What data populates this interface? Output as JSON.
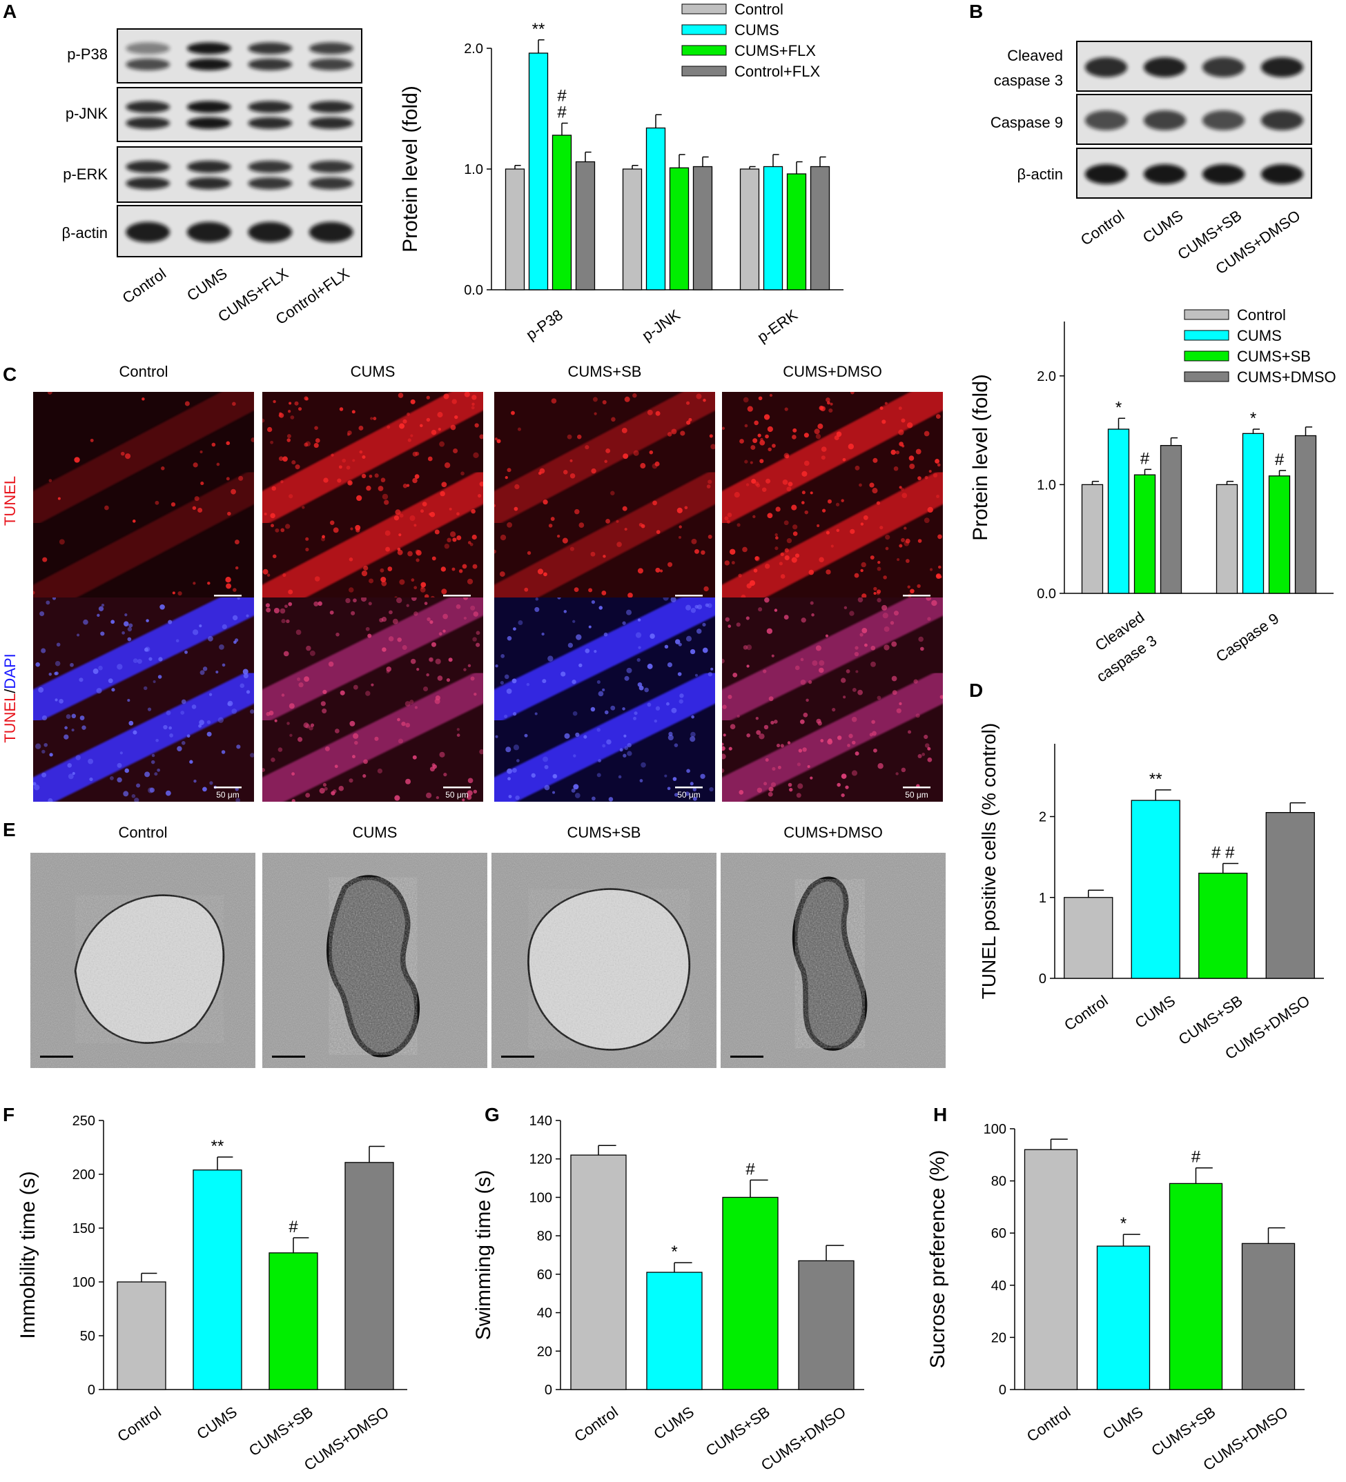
{
  "colors": {
    "control": "#c0c0c0",
    "cums": "#00ffff",
    "cums_drug": "#00ee00",
    "ctrl_drug": "#808080",
    "tunel": "#e8141c",
    "dapi": "#1a1aff"
  },
  "panel_letters": [
    "A",
    "B",
    "C",
    "D",
    "E",
    "F",
    "G",
    "H"
  ],
  "blotA": {
    "rows": [
      "p-P38",
      "p-JNK",
      "p-ERK",
      "β-actin"
    ],
    "lanes": [
      "Control",
      "CUMS",
      "CUMS+FLX",
      "Control+FLX"
    ]
  },
  "blotB": {
    "rows": [
      "Cleaved caspase 3",
      "Caspase 9",
      "β-actin"
    ],
    "lanes": [
      "Control",
      "CUMS",
      "CUMS+SB",
      "CUMS+DMSO"
    ]
  },
  "micro": {
    "cols": [
      "Control",
      "CUMS",
      "CUMS+SB",
      "CUMS+DMSO"
    ],
    "tunel_label": "TUNEL",
    "merge_slash": "/",
    "dapi_label": "DAPI",
    "scale": "50 μm"
  },
  "em": {
    "cols": [
      "Control",
      "CUMS",
      "CUMS+SB",
      "CUMS+DMSO"
    ]
  },
  "chart_data": [
    {
      "id": "A",
      "type": "bar",
      "ylabel": "Protein level (fold)",
      "ylim": [
        0,
        2.0
      ],
      "yticks": [
        "0.0",
        "1.0",
        "2.0"
      ],
      "categories": [
        "p-P38",
        "p-JNK",
        "p-ERK"
      ],
      "legend": "top-right",
      "series": [
        {
          "name": "Control",
          "values": [
            1.0,
            1.0,
            1.0
          ],
          "errors": [
            0.03,
            0.03,
            0.02
          ],
          "marks": [
            "",
            "",
            ""
          ]
        },
        {
          "name": "CUMS",
          "values": [
            1.96,
            1.34,
            1.02
          ],
          "errors": [
            0.11,
            0.11,
            0.1
          ],
          "marks": [
            "**",
            "",
            ""
          ]
        },
        {
          "name": "CUMS+FLX",
          "values": [
            1.28,
            1.01,
            0.96
          ],
          "errors": [
            0.1,
            0.11,
            0.1
          ],
          "marks": [
            "#\n#",
            "",
            ""
          ]
        },
        {
          "name": "Control+FLX",
          "values": [
            1.06,
            1.02,
            1.02
          ],
          "errors": [
            0.08,
            0.08,
            0.08
          ],
          "marks": [
            "",
            "",
            ""
          ]
        }
      ]
    },
    {
      "id": "B",
      "type": "bar",
      "ylabel": "Protein level (fold)",
      "ylim": [
        0,
        2.5
      ],
      "yticks": [
        "0.0",
        "1.0",
        "2.0"
      ],
      "categories": [
        "Cleaved caspase 3",
        "Caspase 9"
      ],
      "legend": "top-right",
      "series": [
        {
          "name": "Control",
          "values": [
            1.0,
            1.0
          ],
          "errors": [
            0.03,
            0.03
          ],
          "marks": [
            "",
            ""
          ]
        },
        {
          "name": "CUMS",
          "values": [
            1.51,
            1.47
          ],
          "errors": [
            0.1,
            0.04
          ],
          "marks": [
            "*",
            "*"
          ]
        },
        {
          "name": "CUMS+SB",
          "values": [
            1.09,
            1.08
          ],
          "errors": [
            0.05,
            0.05
          ],
          "marks": [
            "#",
            "#"
          ]
        },
        {
          "name": "CUMS+DMSO",
          "values": [
            1.36,
            1.45
          ],
          "errors": [
            0.07,
            0.08
          ],
          "marks": [
            "",
            ""
          ]
        }
      ]
    },
    {
      "id": "D",
      "type": "bar",
      "ylabel": "TUNEL positive cells  (% control)",
      "ylim": [
        0,
        2.9
      ],
      "yticks": [
        "0",
        "1",
        "2"
      ],
      "categories": [
        "Control",
        "CUMS",
        "CUMS+SB",
        "CUMS+DMSO"
      ],
      "values": [
        1.0,
        2.2,
        1.3,
        2.05
      ],
      "errors": [
        0.09,
        0.13,
        0.12,
        0.12
      ],
      "marks": [
        "",
        "**",
        "# #",
        ""
      ]
    },
    {
      "id": "F",
      "type": "bar",
      "ylabel": "Immobility time (s)",
      "ylim": [
        0,
        250
      ],
      "yticks": [
        "0",
        "50",
        "100",
        "150",
        "200",
        "250"
      ],
      "categories": [
        "Control",
        "CUMS",
        "CUMS+SB",
        "CUMS+DMSO"
      ],
      "values": [
        100,
        204,
        127,
        211
      ],
      "errors": [
        8,
        12,
        14,
        15
      ],
      "marks": [
        "",
        "**",
        "#",
        ""
      ]
    },
    {
      "id": "G",
      "type": "bar",
      "ylabel": "Swimming time (s)",
      "ylim": [
        0,
        140
      ],
      "yticks": [
        "0",
        "20",
        "40",
        "60",
        "80",
        "100",
        "120",
        "140"
      ],
      "categories": [
        "Control",
        "CUMS",
        "CUMS+SB",
        "CUMS+DMSO"
      ],
      "values": [
        122,
        61,
        100,
        67
      ],
      "errors": [
        5,
        5,
        9,
        8
      ],
      "marks": [
        "",
        "*",
        "#",
        ""
      ]
    },
    {
      "id": "H",
      "type": "bar",
      "ylabel": "Sucrose preference (%)",
      "ylim": [
        0,
        100
      ],
      "yticks": [
        "0",
        "20",
        "40",
        "60",
        "80",
        "100"
      ],
      "categories": [
        "Control",
        "CUMS",
        "CUMS+SB",
        "CUMS+DMSO"
      ],
      "values": [
        92,
        55,
        79,
        56
      ],
      "errors": [
        4,
        4.5,
        6,
        6
      ],
      "marks": [
        "",
        "*",
        "#",
        ""
      ]
    }
  ]
}
